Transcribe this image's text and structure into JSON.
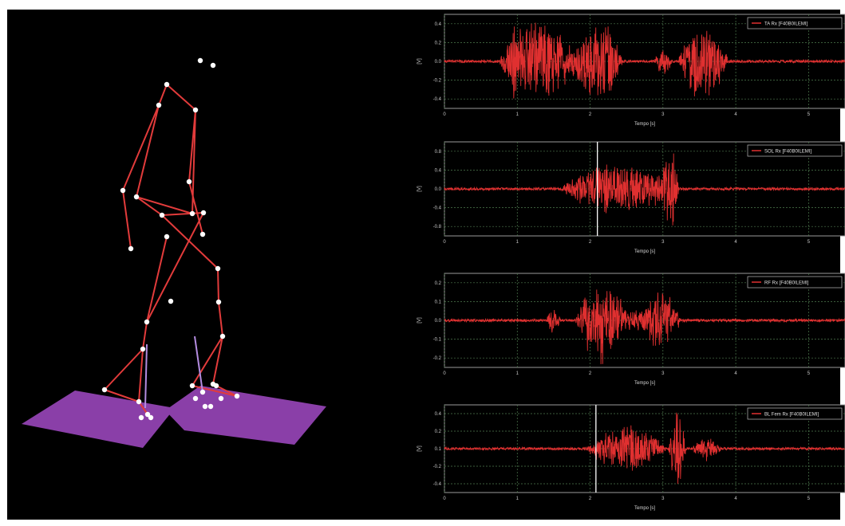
{
  "colors": {
    "background": "#000000",
    "skeleton_line": "#e23b3b",
    "marker": "#ffffff",
    "force_plate": "#8a3fa8",
    "force_vector": "#b48ce0",
    "signal": "#e03030",
    "grid": "#5a8a5a",
    "cursor": "#ffffff"
  },
  "icons": {
    "marker": "marker-dot-icon",
    "legend_swatch": "legend-line-icon"
  },
  "emg_panels": [
    {
      "legend": "TA Rx [F40B0ILEMI]",
      "ylabel": "[V]",
      "xlabel": "Tempo [s]",
      "yticks": [
        "0.4",
        "0.2",
        "0.0",
        "-0.2",
        "-0.4"
      ],
      "xticks": [
        "0",
        "1",
        "2",
        "3",
        "4",
        "5"
      ]
    },
    {
      "legend": "SOL Rx [F40B0ILEMI]",
      "ylabel": "[V]",
      "xlabel": "Tempo [s]",
      "yticks": [
        "0.8",
        "0.4",
        "0.0",
        "-0.4",
        "-0.8"
      ],
      "xticks": [
        "0",
        "1",
        "2",
        "3",
        "4",
        "5"
      ]
    },
    {
      "legend": "RF Rx [F40B0ILEMI]",
      "ylabel": "[V]",
      "xlabel": "Tempo [s]",
      "yticks": [
        "0.2",
        "0.1",
        "0.0",
        "-0.1",
        "-0.2"
      ],
      "xticks": [
        "0",
        "1",
        "2",
        "3",
        "4",
        "5"
      ]
    },
    {
      "legend": "BL Fem Rx [F40B0ILEMI]",
      "ylabel": "[V]",
      "xlabel": "Tempo [s]",
      "yticks": [
        "0.4",
        "0.2",
        "0.1",
        "-0.2",
        "-0.4"
      ],
      "xticks": [
        "0",
        "1",
        "2",
        "3",
        "4",
        "5"
      ]
    }
  ]
}
